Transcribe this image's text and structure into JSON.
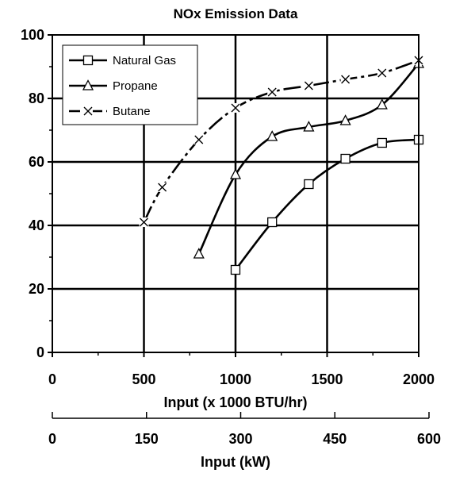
{
  "chart_data": {
    "type": "line",
    "title": "NOx Emission Data",
    "xlabel": "Input (x 1000 BTU/hr)",
    "ylabel": "",
    "xlim": [
      0,
      2000
    ],
    "ylim": [
      0,
      100
    ],
    "x_ticks": [
      "0",
      "500",
      "1000",
      "1500",
      "2000"
    ],
    "y_ticks": [
      "0",
      "20",
      "40",
      "60",
      "80",
      "100"
    ],
    "secondary_x_axis": {
      "label": "Input (kW)",
      "lim": [
        0,
        600
      ],
      "ticks": [
        "0",
        "150",
        "300",
        "450",
        "600"
      ]
    },
    "grid": true,
    "legend_position": "top-left",
    "series": [
      {
        "name": "Natural Gas",
        "marker": "square",
        "x": [
          1000,
          1200,
          1400,
          1600,
          1800,
          2000
        ],
        "y": [
          26,
          41,
          53,
          61,
          66,
          67
        ]
      },
      {
        "name": "Propane",
        "marker": "triangle",
        "x": [
          800,
          1000,
          1200,
          1400,
          1600,
          1800,
          2000
        ],
        "y": [
          31,
          56,
          68,
          71,
          73,
          78,
          91
        ]
      },
      {
        "name": "Butane",
        "marker": "x",
        "x": [
          500,
          600,
          800,
          1000,
          1200,
          1400,
          1600,
          1800,
          2000
        ],
        "y": [
          41,
          52,
          67,
          77,
          82,
          84,
          86,
          88,
          92
        ]
      }
    ]
  }
}
